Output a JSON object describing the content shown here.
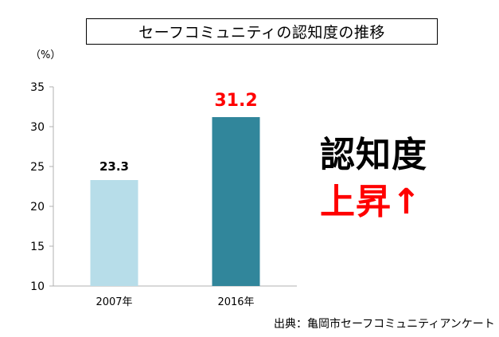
{
  "chart_data": {
    "type": "bar",
    "title": "セーフコミュニティの認知度の推移",
    "ylabel": "（%）",
    "categories": [
      "2007年",
      "2016年"
    ],
    "values": [
      23.3,
      31.2
    ],
    "data_labels": [
      "23.3",
      "31.2"
    ],
    "ylim": [
      10,
      35
    ],
    "yticks": [
      10,
      15,
      20,
      25,
      30,
      35
    ],
    "grid": false,
    "bar_colors": [
      "#b7dde9",
      "#31869b"
    ],
    "label_colors": [
      "#000000",
      "#ff0000"
    ]
  },
  "callout": {
    "line1": "認知度",
    "line2": "上昇↑",
    "line1_color": "#000000",
    "line2_color": "#ff0000"
  },
  "source": "出典：亀岡市セーフコミュニティアンケート"
}
